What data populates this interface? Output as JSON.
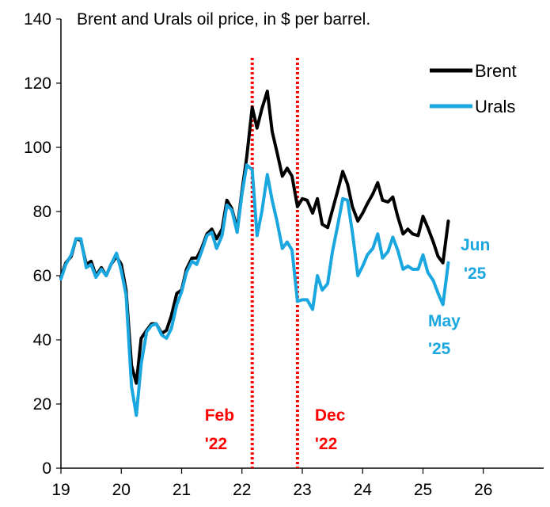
{
  "chart_data": {
    "type": "line",
    "title": "Brent and Urals oil price, in $ per barrel.",
    "xlabel": "",
    "ylabel": "",
    "xlim": [
      19,
      27
    ],
    "ylim": [
      0,
      140
    ],
    "x_ticks": [
      "19",
      "20",
      "21",
      "22",
      "23",
      "24",
      "25",
      "26"
    ],
    "y_ticks": [
      "0",
      "20",
      "40",
      "60",
      "80",
      "100",
      "120",
      "140"
    ],
    "grid": false,
    "legend_position": "top-right",
    "colors": {
      "Brent": "#000000",
      "Urals": "#1aa7e0",
      "annotation": "#ff0000",
      "axis": "#000000"
    },
    "series": [
      {
        "name": "Brent",
        "x": [
          19.0,
          19.08,
          19.17,
          19.25,
          19.33,
          19.42,
          19.5,
          19.58,
          19.67,
          19.75,
          19.83,
          19.92,
          20.0,
          20.08,
          20.17,
          20.25,
          20.33,
          20.42,
          20.5,
          20.58,
          20.67,
          20.75,
          20.83,
          20.92,
          21.0,
          21.08,
          21.17,
          21.25,
          21.33,
          21.42,
          21.5,
          21.58,
          21.67,
          21.75,
          21.83,
          21.92,
          22.0,
          22.08,
          22.17,
          22.25,
          22.33,
          22.42,
          22.5,
          22.58,
          22.67,
          22.75,
          22.83,
          22.92,
          23.0,
          23.08,
          23.17,
          23.25,
          23.33,
          23.42,
          23.5,
          23.58,
          23.67,
          23.75,
          23.83,
          23.92,
          24.0,
          24.08,
          24.17,
          24.25,
          24.33,
          24.42,
          24.5,
          24.58,
          24.67,
          24.75,
          24.83,
          24.92,
          25.0,
          25.08,
          25.17,
          25.25,
          25.33,
          25.42
        ],
        "values": [
          59.5,
          64.0,
          66.0,
          71.5,
          71.0,
          63.5,
          64.5,
          60.0,
          62.5,
          60.0,
          63.5,
          66.0,
          63.5,
          55.5,
          32.0,
          26.5,
          40.5,
          43.0,
          45.0,
          45.0,
          42.0,
          43.0,
          47.5,
          54.5,
          55.5,
          62.0,
          65.5,
          65.5,
          68.5,
          73.0,
          74.5,
          71.5,
          74.5,
          83.5,
          81.0,
          74.5,
          86.5,
          97.0,
          112.5,
          106.0,
          112.0,
          117.5,
          105.0,
          98.5,
          91.0,
          93.5,
          91.0,
          81.5,
          84.0,
          83.5,
          79.5,
          84.0,
          76.0,
          75.0,
          80.5,
          86.0,
          92.5,
          88.5,
          81.5,
          77.0,
          79.5,
          82.5,
          85.5,
          89.0,
          83.5,
          83.0,
          84.5,
          78.5,
          73.0,
          74.5,
          73.0,
          72.5,
          78.5,
          75.0,
          70.5,
          66.0,
          64.0,
          77.0
        ]
      },
      {
        "name": "Urals",
        "x": [
          19.0,
          19.08,
          19.17,
          19.25,
          19.33,
          19.42,
          19.5,
          19.58,
          19.67,
          19.75,
          19.83,
          19.92,
          20.0,
          20.08,
          20.17,
          20.25,
          20.33,
          20.42,
          20.5,
          20.58,
          20.67,
          20.75,
          20.83,
          20.92,
          21.0,
          21.08,
          21.17,
          21.25,
          21.33,
          21.42,
          21.5,
          21.58,
          21.67,
          21.75,
          21.83,
          21.92,
          22.0,
          22.08,
          22.17,
          22.25,
          22.33,
          22.42,
          22.5,
          22.58,
          22.67,
          22.75,
          22.83,
          22.92,
          23.0,
          23.08,
          23.17,
          23.25,
          23.33,
          23.42,
          23.5,
          23.58,
          23.67,
          23.75,
          23.83,
          23.92,
          24.0,
          24.08,
          24.17,
          24.25,
          24.33,
          24.42,
          24.5,
          24.58,
          24.67,
          24.75,
          24.83,
          24.92,
          25.0,
          25.08,
          25.17,
          25.25,
          25.33,
          25.42
        ],
        "values": [
          59.0,
          63.5,
          66.5,
          71.5,
          71.5,
          62.5,
          63.5,
          59.5,
          62.0,
          60.0,
          63.5,
          67.0,
          61.5,
          54.0,
          25.5,
          16.5,
          32.5,
          42.5,
          44.5,
          45.0,
          41.5,
          40.5,
          43.5,
          51.0,
          55.0,
          61.0,
          64.5,
          63.5,
          67.5,
          72.5,
          73.5,
          68.5,
          72.5,
          82.0,
          80.5,
          73.5,
          85.5,
          94.5,
          93.0,
          72.5,
          80.0,
          91.5,
          83.5,
          77.0,
          68.5,
          70.5,
          68.0,
          52.0,
          52.5,
          52.5,
          49.5,
          60.0,
          55.5,
          57.5,
          67.5,
          75.0,
          84.0,
          83.5,
          73.5,
          60.0,
          63.0,
          66.5,
          68.5,
          73.0,
          65.5,
          67.5,
          72.0,
          68.0,
          62.0,
          63.0,
          62.0,
          62.0,
          66.5,
          61.0,
          58.5,
          54.5,
          51.0,
          64.0
        ]
      }
    ],
    "annotations": [
      {
        "x": 22.17,
        "label_line1": "Feb",
        "label_line2": "'22"
      },
      {
        "x": 22.92,
        "label_line1": "Dec",
        "label_line2": "'22"
      }
    ],
    "end_labels": {
      "urals_last": {
        "line1": "Jun",
        "line2": "'25"
      },
      "urals_low": {
        "line1": "May",
        "line2": "'25"
      }
    }
  }
}
